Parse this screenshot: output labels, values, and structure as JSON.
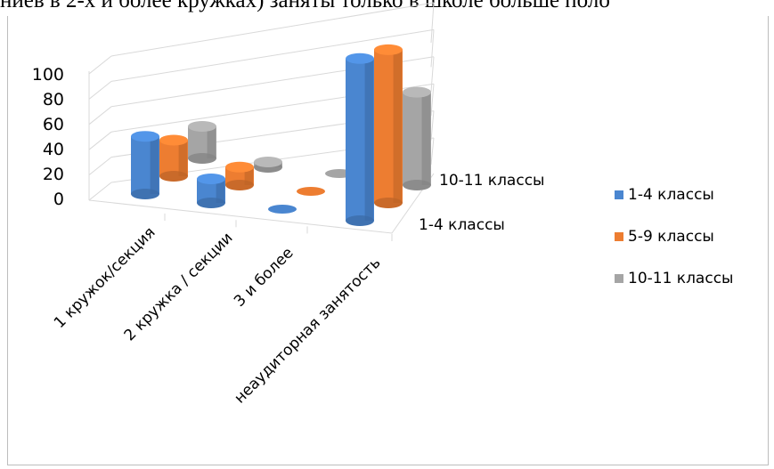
{
  "caption": "ниев в 2-х и более кружках) заняты только в школе больше поло",
  "chart_data": {
    "type": "bar",
    "style": "3d-cylinder",
    "categories": [
      "1 кружок/секция",
      "2 кружка / секции",
      "3 и более",
      "неаудиторная занятость"
    ],
    "depth_labels": [
      "1-4 классы",
      "10-11 классы"
    ],
    "yticks": [
      "100",
      "80",
      "60",
      "40",
      "20",
      "0"
    ],
    "ylim": [
      0,
      100
    ],
    "series": [
      {
        "name": "1-4 классы",
        "color": "#4a86d0",
        "values": [
          48,
          20,
          0,
          90
        ]
      },
      {
        "name": "5-9 классы",
        "color": "#ed7d31",
        "values": [
          30,
          15,
          0,
          85
        ]
      },
      {
        "name": "10-11 классы",
        "color": "#a5a5a5",
        "values": [
          30,
          5,
          0,
          58
        ]
      }
    ],
    "legend_position": "right"
  }
}
